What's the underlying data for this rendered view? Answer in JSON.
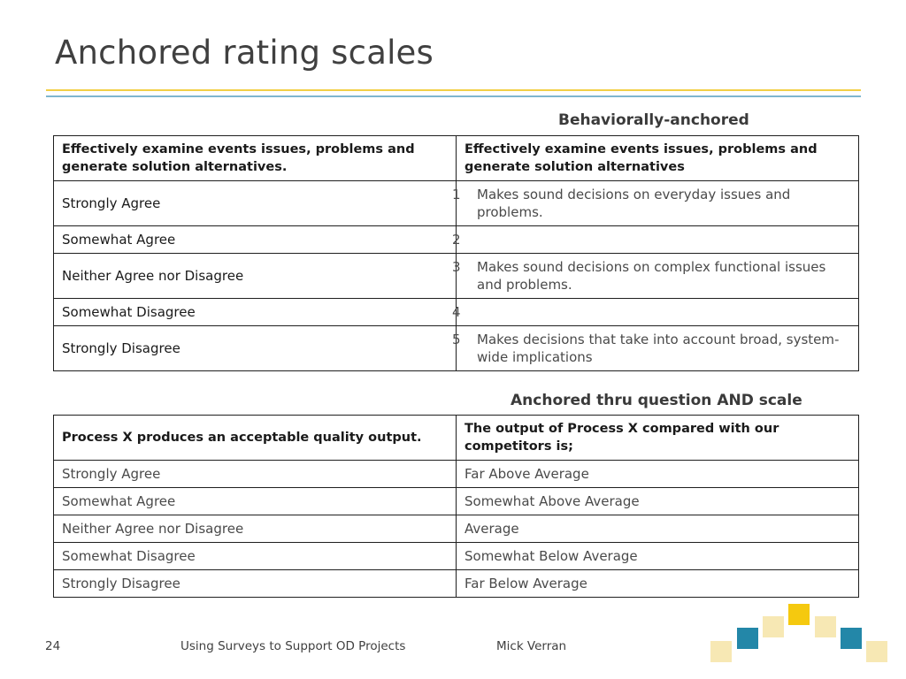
{
  "slide": {
    "title": "Anchored rating scales",
    "page_number": "24",
    "footer_title": "Using Surveys to Support OD Projects",
    "footer_author": "Mick Verran"
  },
  "table1": {
    "caption": "Behaviorally-anchored",
    "header": [
      "Effectively examine events issues, problems and generate solution alternatives.",
      "Effectively examine events issues, problems and generate solution alternatives"
    ],
    "rows": [
      {
        "scale": "Strongly Agree",
        "num": "1",
        "anchor": "Makes sound decisions on everyday issues and problems."
      },
      {
        "scale": "Somewhat Agree",
        "num": "2",
        "anchor": ""
      },
      {
        "scale": "Neither Agree nor Disagree",
        "num": "3",
        "anchor": "Makes sound decisions on complex functional issues and problems."
      },
      {
        "scale": "Somewhat Disagree",
        "num": "4",
        "anchor": ""
      },
      {
        "scale": "Strongly Disagree",
        "num": "5",
        "anchor": "Makes decisions that take into account broad, system-wide implications"
      }
    ]
  },
  "table2": {
    "caption": "Anchored thru question AND scale",
    "header": [
      "Process X produces an acceptable quality output.",
      "The output of Process X compared with our competitors is;"
    ],
    "rows": [
      {
        "left": "Strongly Agree",
        "right": "Far Above Average"
      },
      {
        "left": "Somewhat Agree",
        "right": "Somewhat Above Average"
      },
      {
        "left": "Neither Agree nor Disagree",
        "right": "Average"
      },
      {
        "left": "Somewhat Disagree",
        "right": "Somewhat Below Average"
      },
      {
        "left": "Strongly Disagree",
        "right": "Far Below Average"
      }
    ]
  },
  "colors": {
    "rule_top": "#f3cf46",
    "rule_bottom": "#7fb6cf",
    "deco_teal": "#2387a8",
    "deco_gold": "#f5c90f",
    "deco_pale": "#f7e8b4"
  }
}
